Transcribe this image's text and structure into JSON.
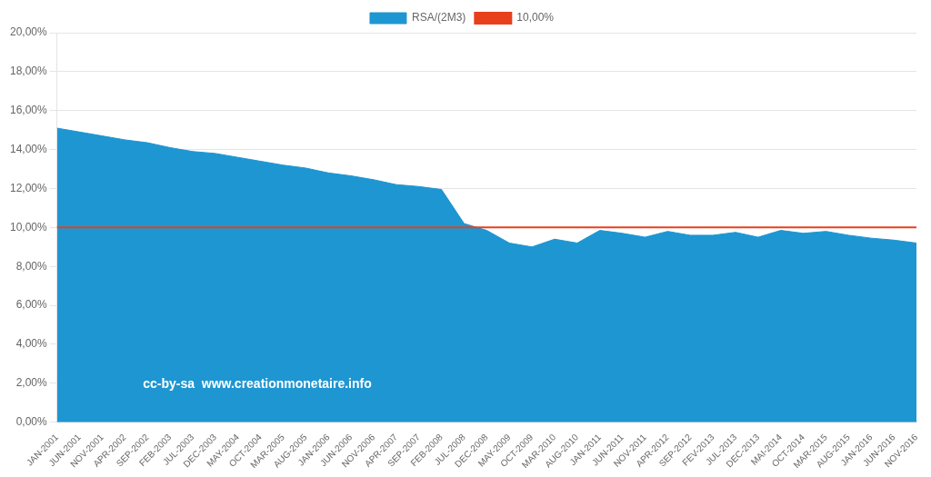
{
  "chart_data": {
    "type": "area",
    "categories": [
      "JAN-2001",
      "JUN-2001",
      "NOV-2001",
      "APR-2002",
      "SEP-2002",
      "FEB-2003",
      "JUL-2003",
      "DEC-2003",
      "MAY-2004",
      "OCT-2004",
      "MAR-2005",
      "AUG-2005",
      "JAN-2006",
      "JUN-2006",
      "NOV-2006",
      "APR-2007",
      "SEP-2007",
      "FEB-2008",
      "JUL-2008",
      "DEC-2008",
      "MAY-2009",
      "OCT-2009",
      "MAR-2010",
      "AUG-2010",
      "JAN-2011",
      "JUN-2011",
      "NOV-2011",
      "APR-2012",
      "SEP-2012",
      "FEV-2013",
      "JUL-2013",
      "DEC-2013",
      "MAI-2014",
      "OCT-2014",
      "MAR-2015",
      "AUG-2015",
      "JAN-2016",
      "JUN-2016",
      "NOV-2016"
    ],
    "series": [
      {
        "name": "RSA/(2M3)",
        "type": "area",
        "color": "#1e96d2",
        "values": [
          15.1,
          14.9,
          14.7,
          14.5,
          14.35,
          14.1,
          13.9,
          13.8,
          13.6,
          13.4,
          13.2,
          13.05,
          12.8,
          12.65,
          12.45,
          12.2,
          12.1,
          11.95,
          10.2,
          9.85,
          9.2,
          9.0,
          9.4,
          9.2,
          9.85,
          9.7,
          9.5,
          9.8,
          9.6,
          9.6,
          9.75,
          9.5,
          9.85,
          9.7,
          9.8,
          9.6,
          9.45,
          9.35,
          9.2
        ]
      },
      {
        "name": "10,00%",
        "type": "line",
        "color": "#e8401c",
        "values": [
          10.0,
          10.0,
          10.0,
          10.0,
          10.0,
          10.0,
          10.0,
          10.0,
          10.0,
          10.0,
          10.0,
          10.0,
          10.0,
          10.0,
          10.0,
          10.0,
          10.0,
          10.0,
          10.0,
          10.0,
          10.0,
          10.0,
          10.0,
          10.0,
          10.0,
          10.0,
          10.0,
          10.0,
          10.0,
          10.0,
          10.0,
          10.0,
          10.0,
          10.0,
          10.0,
          10.0,
          10.0,
          10.0,
          10.0
        ]
      }
    ],
    "ylim": [
      0.0,
      20.0
    ],
    "yticks": [
      {
        "value": 0.0,
        "label": "0,00%"
      },
      {
        "value": 2.0,
        "label": "2,00%"
      },
      {
        "value": 4.0,
        "label": "4,00%"
      },
      {
        "value": 6.0,
        "label": "6,00%"
      },
      {
        "value": 8.0,
        "label": "8,00%"
      },
      {
        "value": 10.0,
        "label": "10,00%"
      },
      {
        "value": 12.0,
        "label": "12,00%"
      },
      {
        "value": 14.0,
        "label": "14,00%"
      },
      {
        "value": 16.0,
        "label": "16,00%"
      },
      {
        "value": 18.0,
        "label": "18,00%"
      },
      {
        "value": 20.0,
        "label": "20,00%"
      }
    ],
    "grid": "y",
    "legend": "top",
    "annotations": [
      "cc-by-sa  www.creationmonetaire.info"
    ]
  }
}
